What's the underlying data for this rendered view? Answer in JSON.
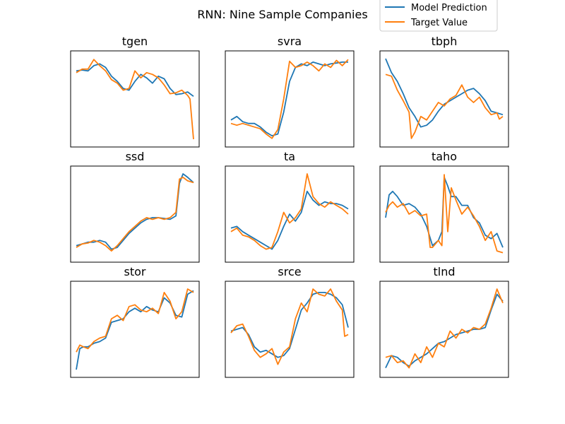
{
  "figure": {
    "title": "RNN: Nine Sample Companies",
    "legend": {
      "placement": "top-right",
      "entries": [
        {
          "label": "Model Prediction",
          "color": "#1f77b4"
        },
        {
          "label": "Target Value",
          "color": "#ff7f0e"
        }
      ]
    }
  },
  "chart_data": [
    {
      "type": "line",
      "title": "tgen",
      "xlim": [
        0,
        100
      ],
      "ylim": [
        0,
        1
      ],
      "axis_ticks": false,
      "series": [
        {
          "name": "Model Prediction",
          "color": "#1f77b4",
          "x": [
            0,
            5,
            10,
            15,
            20,
            25,
            30,
            35,
            40,
            45,
            50,
            55,
            60,
            65,
            70,
            75,
            80,
            85,
            90,
            95,
            100
          ],
          "y": [
            0.82,
            0.83,
            0.82,
            0.88,
            0.9,
            0.86,
            0.76,
            0.7,
            0.62,
            0.6,
            0.7,
            0.78,
            0.74,
            0.68,
            0.76,
            0.73,
            0.62,
            0.55,
            0.56,
            0.58,
            0.53
          ]
        },
        {
          "name": "Target Value",
          "color": "#ff7f0e",
          "x": [
            0,
            5,
            10,
            15,
            20,
            25,
            30,
            35,
            40,
            45,
            50,
            55,
            60,
            65,
            70,
            75,
            80,
            85,
            90,
            95,
            97,
            100
          ],
          "y": [
            0.8,
            0.84,
            0.84,
            0.95,
            0.88,
            0.82,
            0.72,
            0.68,
            0.6,
            0.62,
            0.82,
            0.74,
            0.8,
            0.78,
            0.74,
            0.66,
            0.56,
            0.57,
            0.6,
            0.54,
            0.5,
            0.04
          ]
        }
      ]
    },
    {
      "type": "line",
      "title": "svra",
      "xlim": [
        0,
        100
      ],
      "ylim": [
        0,
        1
      ],
      "axis_ticks": false,
      "series": [
        {
          "name": "Model Prediction",
          "color": "#1f77b4",
          "x": [
            0,
            5,
            10,
            15,
            20,
            25,
            30,
            35,
            40,
            45,
            50,
            55,
            60,
            65,
            70,
            75,
            80,
            85,
            90,
            95,
            100
          ],
          "y": [
            0.26,
            0.3,
            0.24,
            0.22,
            0.22,
            0.18,
            0.12,
            0.08,
            0.1,
            0.35,
            0.7,
            0.86,
            0.9,
            0.88,
            0.92,
            0.9,
            0.88,
            0.9,
            0.91,
            0.92,
            0.92
          ]
        },
        {
          "name": "Target Value",
          "color": "#ff7f0e",
          "x": [
            0,
            5,
            10,
            15,
            20,
            25,
            30,
            35,
            40,
            45,
            50,
            55,
            60,
            65,
            70,
            75,
            80,
            85,
            90,
            95,
            100
          ],
          "y": [
            0.22,
            0.2,
            0.22,
            0.2,
            0.18,
            0.16,
            0.1,
            0.05,
            0.15,
            0.5,
            0.93,
            0.86,
            0.88,
            0.92,
            0.88,
            0.82,
            0.9,
            0.86,
            0.94,
            0.88,
            0.95
          ]
        }
      ]
    },
    {
      "type": "line",
      "title": "tbph",
      "xlim": [
        0,
        100
      ],
      "ylim": [
        0,
        1
      ],
      "axis_ticks": false,
      "series": [
        {
          "name": "Model Prediction",
          "color": "#1f77b4",
          "x": [
            0,
            5,
            10,
            15,
            20,
            25,
            30,
            35,
            40,
            45,
            50,
            55,
            60,
            65,
            70,
            75,
            80,
            85,
            90,
            95,
            100
          ],
          "y": [
            0.96,
            0.8,
            0.7,
            0.56,
            0.4,
            0.3,
            0.18,
            0.2,
            0.26,
            0.36,
            0.44,
            0.48,
            0.52,
            0.56,
            0.6,
            0.62,
            0.56,
            0.48,
            0.36,
            0.34,
            0.32
          ]
        },
        {
          "name": "Target Value",
          "color": "#ff7f0e",
          "x": [
            0,
            5,
            10,
            15,
            20,
            22,
            25,
            30,
            35,
            40,
            45,
            50,
            55,
            60,
            65,
            70,
            75,
            80,
            85,
            90,
            95,
            97,
            100
          ],
          "y": [
            0.78,
            0.76,
            0.6,
            0.48,
            0.35,
            0.05,
            0.12,
            0.3,
            0.26,
            0.36,
            0.46,
            0.42,
            0.5,
            0.54,
            0.66,
            0.52,
            0.46,
            0.52,
            0.4,
            0.32,
            0.34,
            0.27,
            0.3
          ]
        }
      ]
    },
    {
      "type": "line",
      "title": "ssd",
      "xlim": [
        0,
        100
      ],
      "ylim": [
        0,
        1
      ],
      "axis_ticks": false,
      "series": [
        {
          "name": "Model Prediction",
          "color": "#1f77b4",
          "x": [
            0,
            5,
            10,
            15,
            20,
            25,
            30,
            35,
            40,
            45,
            50,
            55,
            60,
            65,
            70,
            75,
            80,
            85,
            88,
            91,
            95,
            100
          ],
          "y": [
            0.14,
            0.16,
            0.18,
            0.18,
            0.2,
            0.18,
            0.1,
            0.12,
            0.2,
            0.28,
            0.34,
            0.4,
            0.44,
            0.46,
            0.46,
            0.45,
            0.44,
            0.48,
            0.85,
            0.96,
            0.92,
            0.86
          ]
        },
        {
          "name": "Target Value",
          "color": "#ff7f0e",
          "x": [
            0,
            5,
            10,
            15,
            20,
            25,
            30,
            35,
            40,
            45,
            50,
            55,
            60,
            65,
            70,
            75,
            80,
            85,
            88,
            91,
            95,
            100
          ],
          "y": [
            0.12,
            0.16,
            0.17,
            0.2,
            0.18,
            0.14,
            0.08,
            0.14,
            0.22,
            0.3,
            0.36,
            0.42,
            0.46,
            0.44,
            0.46,
            0.44,
            0.46,
            0.52,
            0.9,
            0.92,
            0.88,
            0.86
          ]
        }
      ]
    },
    {
      "type": "line",
      "title": "ta",
      "xlim": [
        0,
        100
      ],
      "ylim": [
        0,
        1
      ],
      "axis_ticks": false,
      "series": [
        {
          "name": "Model Prediction",
          "color": "#1f77b4",
          "x": [
            0,
            5,
            10,
            15,
            20,
            25,
            30,
            35,
            40,
            45,
            50,
            55,
            60,
            65,
            70,
            75,
            80,
            85,
            90,
            95,
            100
          ],
          "y": [
            0.34,
            0.36,
            0.3,
            0.26,
            0.22,
            0.18,
            0.14,
            0.1,
            0.2,
            0.36,
            0.5,
            0.42,
            0.52,
            0.76,
            0.66,
            0.6,
            0.64,
            0.62,
            0.62,
            0.6,
            0.56
          ]
        },
        {
          "name": "Target Value",
          "color": "#ff7f0e",
          "x": [
            0,
            5,
            10,
            15,
            20,
            25,
            30,
            35,
            40,
            45,
            50,
            55,
            60,
            65,
            70,
            75,
            80,
            85,
            90,
            95,
            100
          ],
          "y": [
            0.3,
            0.34,
            0.26,
            0.24,
            0.2,
            0.14,
            0.1,
            0.12,
            0.3,
            0.52,
            0.4,
            0.46,
            0.56,
            0.96,
            0.7,
            0.62,
            0.58,
            0.64,
            0.6,
            0.56,
            0.5
          ]
        }
      ]
    },
    {
      "type": "line",
      "title": "taho",
      "xlim": [
        0,
        100
      ],
      "ylim": [
        0,
        1
      ],
      "axis_ticks": false,
      "series": [
        {
          "name": "Model Prediction",
          "color": "#1f77b4",
          "x": [
            0,
            3,
            6,
            10,
            15,
            20,
            25,
            30,
            35,
            40,
            45,
            48,
            50,
            53,
            56,
            60,
            65,
            70,
            75,
            80,
            85,
            90,
            95,
            100
          ],
          "y": [
            0.46,
            0.72,
            0.76,
            0.7,
            0.6,
            0.62,
            0.58,
            0.5,
            0.36,
            0.14,
            0.2,
            0.3,
            0.92,
            0.82,
            0.7,
            0.7,
            0.6,
            0.6,
            0.46,
            0.4,
            0.26,
            0.22,
            0.28,
            0.12
          ]
        },
        {
          "name": "Target Value",
          "color": "#ff7f0e",
          "x": [
            0,
            3,
            6,
            10,
            15,
            20,
            25,
            30,
            35,
            38,
            40,
            45,
            48,
            50,
            53,
            56,
            60,
            65,
            70,
            75,
            80,
            85,
            90,
            95,
            100
          ],
          "y": [
            0.52,
            0.6,
            0.64,
            0.58,
            0.62,
            0.5,
            0.54,
            0.48,
            0.5,
            0.12,
            0.12,
            0.2,
            0.14,
            0.95,
            0.3,
            0.8,
            0.66,
            0.5,
            0.58,
            0.48,
            0.36,
            0.2,
            0.3,
            0.08,
            0.06
          ]
        }
      ]
    },
    {
      "type": "line",
      "title": "stor",
      "xlim": [
        0,
        100
      ],
      "ylim": [
        0,
        1
      ],
      "axis_ticks": false,
      "series": [
        {
          "name": "Model Prediction",
          "color": "#1f77b4",
          "x": [
            0,
            3,
            6,
            10,
            15,
            20,
            25,
            30,
            35,
            40,
            45,
            50,
            55,
            60,
            65,
            70,
            75,
            80,
            85,
            90,
            95,
            100
          ],
          "y": [
            0.04,
            0.28,
            0.3,
            0.3,
            0.34,
            0.36,
            0.4,
            0.58,
            0.6,
            0.62,
            0.7,
            0.74,
            0.7,
            0.76,
            0.72,
            0.7,
            0.86,
            0.8,
            0.66,
            0.64,
            0.9,
            0.94
          ]
        },
        {
          "name": "Target Value",
          "color": "#ff7f0e",
          "x": [
            0,
            3,
            6,
            10,
            15,
            20,
            25,
            30,
            35,
            40,
            45,
            50,
            55,
            60,
            65,
            70,
            75,
            80,
            85,
            90,
            95,
            100
          ],
          "y": [
            0.24,
            0.32,
            0.3,
            0.28,
            0.36,
            0.4,
            0.42,
            0.62,
            0.66,
            0.6,
            0.76,
            0.78,
            0.72,
            0.7,
            0.74,
            0.68,
            0.92,
            0.82,
            0.62,
            0.7,
            0.96,
            0.92
          ]
        }
      ]
    },
    {
      "type": "line",
      "title": "srce",
      "xlim": [
        0,
        100
      ],
      "ylim": [
        0,
        1
      ],
      "axis_ticks": false,
      "series": [
        {
          "name": "Model Prediction",
          "color": "#1f77b4",
          "x": [
            0,
            5,
            10,
            15,
            20,
            25,
            30,
            35,
            40,
            45,
            50,
            55,
            60,
            65,
            70,
            75,
            80,
            85,
            90,
            95,
            100
          ],
          "y": [
            0.48,
            0.5,
            0.52,
            0.44,
            0.3,
            0.24,
            0.26,
            0.22,
            0.18,
            0.2,
            0.28,
            0.5,
            0.72,
            0.8,
            0.9,
            0.92,
            0.92,
            0.9,
            0.86,
            0.78,
            0.52
          ]
        },
        {
          "name": "Target Value",
          "color": "#ff7f0e",
          "x": [
            0,
            5,
            10,
            15,
            20,
            25,
            30,
            35,
            40,
            45,
            50,
            55,
            60,
            65,
            70,
            75,
            80,
            85,
            90,
            95,
            97,
            100
          ],
          "y": [
            0.46,
            0.54,
            0.56,
            0.42,
            0.26,
            0.18,
            0.22,
            0.28,
            0.1,
            0.24,
            0.3,
            0.62,
            0.8,
            0.7,
            0.96,
            0.9,
            0.88,
            0.96,
            0.82,
            0.72,
            0.42,
            0.44
          ]
        }
      ]
    },
    {
      "type": "line",
      "title": "tlnd",
      "xlim": [
        0,
        100
      ],
      "ylim": [
        0,
        1
      ],
      "axis_ticks": false,
      "series": [
        {
          "name": "Model Prediction",
          "color": "#1f77b4",
          "x": [
            0,
            5,
            10,
            15,
            20,
            25,
            30,
            35,
            40,
            45,
            50,
            55,
            60,
            65,
            70,
            75,
            80,
            85,
            90,
            95,
            100
          ],
          "y": [
            0.06,
            0.2,
            0.18,
            0.12,
            0.08,
            0.14,
            0.18,
            0.22,
            0.28,
            0.34,
            0.36,
            0.4,
            0.44,
            0.46,
            0.48,
            0.5,
            0.5,
            0.52,
            0.72,
            0.9,
            0.82
          ]
        },
        {
          "name": "Target Value",
          "color": "#ff7f0e",
          "x": [
            0,
            5,
            10,
            15,
            20,
            25,
            30,
            35,
            40,
            45,
            50,
            55,
            60,
            65,
            70,
            75,
            80,
            85,
            90,
            95,
            100
          ],
          "y": [
            0.18,
            0.2,
            0.12,
            0.14,
            0.06,
            0.22,
            0.12,
            0.3,
            0.18,
            0.34,
            0.3,
            0.48,
            0.4,
            0.5,
            0.46,
            0.52,
            0.5,
            0.56,
            0.74,
            0.96,
            0.8
          ]
        }
      ]
    }
  ]
}
